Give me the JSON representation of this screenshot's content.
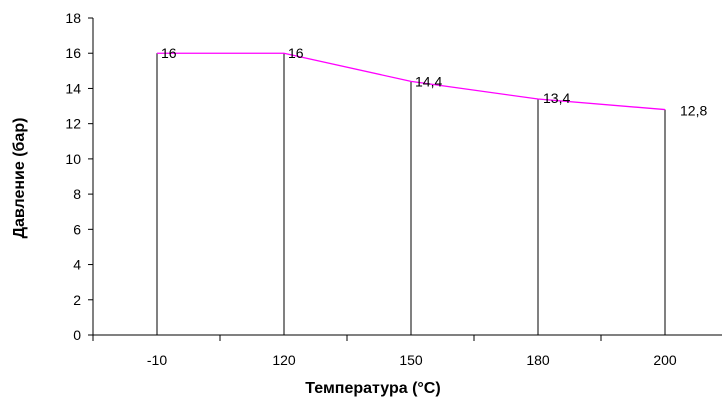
{
  "chart_data": {
    "type": "line",
    "categories": [
      "-10",
      "120",
      "150",
      "180",
      "200"
    ],
    "series": [
      {
        "values": [
          16,
          16,
          14.4,
          13.4,
          12.8
        ]
      }
    ],
    "data_labels": [
      "16",
      "16",
      "14,4",
      "13,4",
      "12,8"
    ],
    "xlabel": "Температура (°C)",
    "ylabel": "Давление (бар)",
    "ylim": [
      0,
      18
    ],
    "yticks": [
      0,
      2,
      4,
      6,
      8,
      10,
      12,
      14,
      16,
      18
    ],
    "grid": false,
    "drop_lines": true,
    "line_color": "#ff00ff",
    "axis_color": "#000000"
  }
}
